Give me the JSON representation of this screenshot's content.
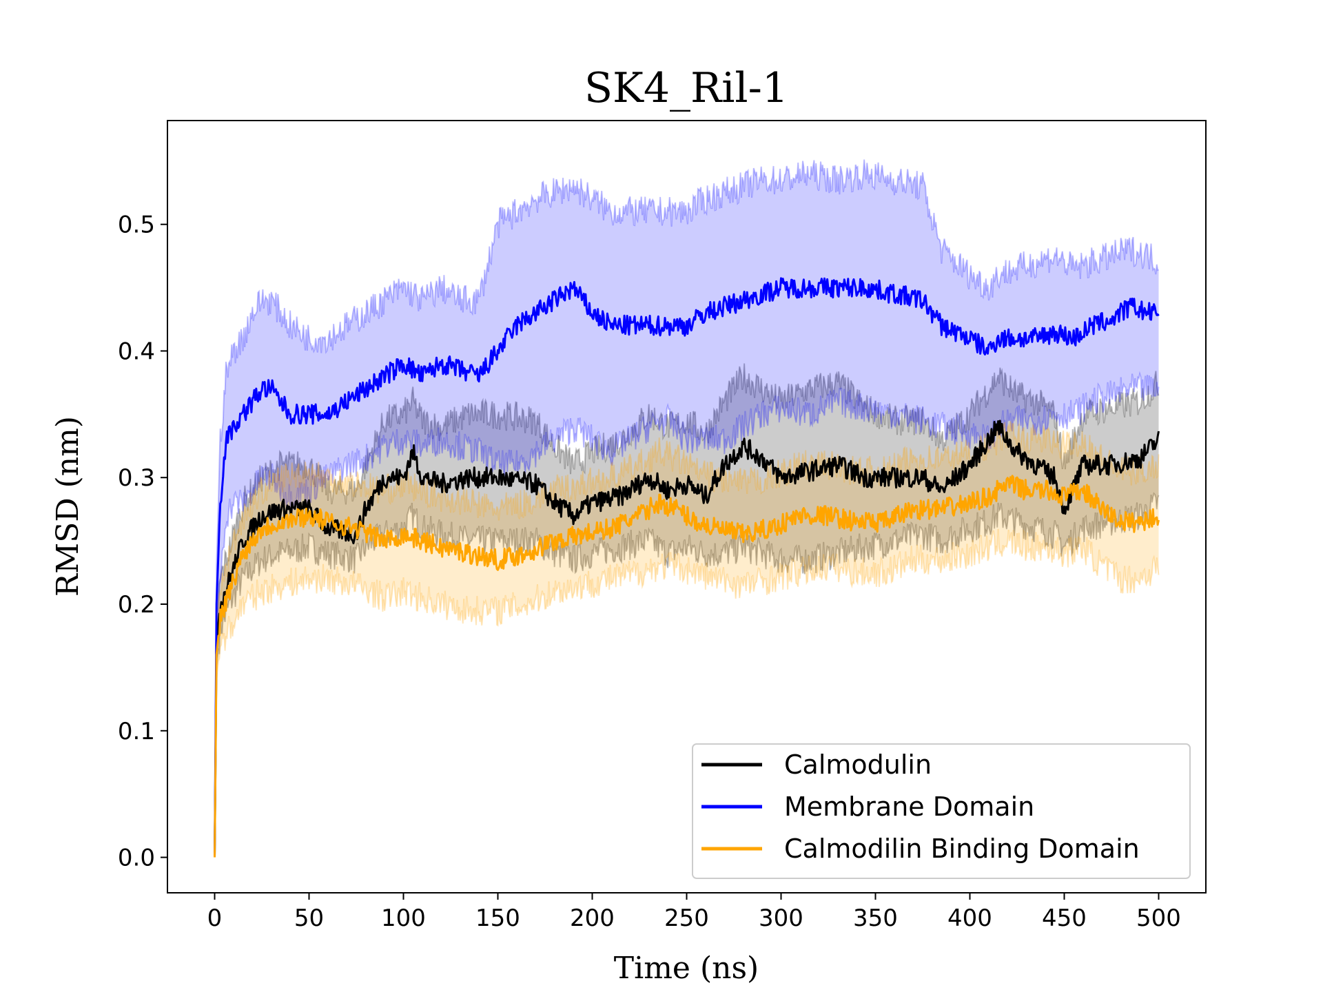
{
  "chart_data": {
    "type": "line",
    "title": "SK4_Ril-1",
    "xlabel": "Time (ns)",
    "ylabel": "RMSD (nm)",
    "xlim": [
      -25,
      525
    ],
    "ylim": [
      -0.028,
      0.582
    ],
    "xticks": [
      0,
      50,
      100,
      150,
      200,
      250,
      300,
      350,
      400,
      450,
      500
    ],
    "xtick_labels": [
      "0",
      "50",
      "100",
      "150",
      "200",
      "250",
      "300",
      "350",
      "400",
      "450",
      "500"
    ],
    "yticks": [
      0.0,
      0.1,
      0.2,
      0.3,
      0.4,
      0.5
    ],
    "ytick_labels": [
      "0.0",
      "0.1",
      "0.2",
      "0.3",
      "0.4",
      "0.5"
    ],
    "grid": false,
    "legend_position": "lower-right",
    "series": [
      {
        "name": "Calmodulin",
        "color": "#000000",
        "x": [
          0,
          1,
          3,
          8,
          15,
          25,
          35,
          50,
          60,
          75,
          80,
          90,
          100,
          105,
          110,
          120,
          135,
          150,
          170,
          180,
          190,
          200,
          215,
          230,
          240,
          250,
          260,
          270,
          280,
          290,
          300,
          315,
          330,
          345,
          360,
          375,
          385,
          400,
          410,
          415,
          425,
          435,
          445,
          450,
          460,
          475,
          490,
          500
        ],
        "y": [
          0.0,
          0.17,
          0.2,
          0.22,
          0.25,
          0.27,
          0.275,
          0.275,
          0.26,
          0.255,
          0.275,
          0.3,
          0.3,
          0.32,
          0.3,
          0.295,
          0.3,
          0.3,
          0.295,
          0.28,
          0.27,
          0.28,
          0.285,
          0.3,
          0.29,
          0.295,
          0.285,
          0.31,
          0.325,
          0.315,
          0.3,
          0.305,
          0.31,
          0.3,
          0.3,
          0.3,
          0.29,
          0.31,
          0.33,
          0.34,
          0.32,
          0.31,
          0.3,
          0.275,
          0.31,
          0.31,
          0.315,
          0.33
        ],
        "lower": [
          0.0,
          0.15,
          0.18,
          0.2,
          0.22,
          0.235,
          0.24,
          0.245,
          0.24,
          0.235,
          0.245,
          0.255,
          0.26,
          0.27,
          0.26,
          0.255,
          0.25,
          0.25,
          0.25,
          0.24,
          0.235,
          0.24,
          0.245,
          0.25,
          0.24,
          0.245,
          0.24,
          0.24,
          0.245,
          0.24,
          0.235,
          0.235,
          0.24,
          0.245,
          0.25,
          0.255,
          0.25,
          0.26,
          0.265,
          0.27,
          0.265,
          0.26,
          0.255,
          0.245,
          0.26,
          0.265,
          0.27,
          0.28
        ],
        "upper": [
          0.0,
          0.19,
          0.22,
          0.245,
          0.28,
          0.3,
          0.31,
          0.31,
          0.29,
          0.29,
          0.31,
          0.345,
          0.35,
          0.36,
          0.345,
          0.34,
          0.35,
          0.35,
          0.345,
          0.325,
          0.31,
          0.32,
          0.33,
          0.35,
          0.34,
          0.345,
          0.335,
          0.36,
          0.38,
          0.37,
          0.36,
          0.37,
          0.375,
          0.355,
          0.345,
          0.345,
          0.33,
          0.35,
          0.37,
          0.38,
          0.365,
          0.36,
          0.35,
          0.31,
          0.35,
          0.355,
          0.36,
          0.375
        ]
      },
      {
        "name": "Membrane Domain",
        "color": "#0000ff",
        "x": [
          0,
          1,
          3,
          6,
          10,
          15,
          20,
          25,
          30,
          40,
          50,
          60,
          70,
          80,
          90,
          100,
          110,
          120,
          130,
          140,
          150,
          160,
          170,
          180,
          190,
          200,
          210,
          220,
          230,
          240,
          250,
          260,
          270,
          280,
          290,
          300,
          315,
          330,
          345,
          360,
          375,
          385,
          400,
          410,
          415,
          425,
          435,
          445,
          455,
          465,
          475,
          485,
          495,
          500
        ],
        "y": [
          0.0,
          0.2,
          0.28,
          0.33,
          0.34,
          0.35,
          0.36,
          0.37,
          0.37,
          0.35,
          0.35,
          0.35,
          0.36,
          0.37,
          0.38,
          0.39,
          0.38,
          0.39,
          0.385,
          0.38,
          0.4,
          0.42,
          0.43,
          0.44,
          0.45,
          0.43,
          0.42,
          0.42,
          0.42,
          0.42,
          0.42,
          0.43,
          0.435,
          0.44,
          0.445,
          0.45,
          0.45,
          0.45,
          0.45,
          0.445,
          0.44,
          0.42,
          0.41,
          0.4,
          0.41,
          0.41,
          0.41,
          0.415,
          0.41,
          0.42,
          0.425,
          0.435,
          0.43,
          0.43
        ],
        "lower": [
          0.0,
          0.17,
          0.22,
          0.27,
          0.28,
          0.28,
          0.29,
          0.3,
          0.3,
          0.285,
          0.29,
          0.3,
          0.31,
          0.315,
          0.325,
          0.33,
          0.325,
          0.33,
          0.325,
          0.32,
          0.31,
          0.31,
          0.32,
          0.33,
          0.34,
          0.33,
          0.32,
          0.33,
          0.34,
          0.345,
          0.33,
          0.33,
          0.33,
          0.34,
          0.35,
          0.355,
          0.35,
          0.36,
          0.355,
          0.35,
          0.345,
          0.34,
          0.335,
          0.33,
          0.34,
          0.345,
          0.345,
          0.35,
          0.35,
          0.36,
          0.365,
          0.37,
          0.37,
          0.37
        ],
        "upper": [
          0.0,
          0.23,
          0.33,
          0.38,
          0.4,
          0.41,
          0.43,
          0.44,
          0.44,
          0.42,
          0.41,
          0.41,
          0.42,
          0.43,
          0.44,
          0.45,
          0.44,
          0.45,
          0.44,
          0.44,
          0.5,
          0.51,
          0.52,
          0.525,
          0.53,
          0.52,
          0.51,
          0.51,
          0.51,
          0.51,
          0.51,
          0.52,
          0.525,
          0.53,
          0.535,
          0.535,
          0.54,
          0.535,
          0.54,
          0.535,
          0.53,
          0.48,
          0.46,
          0.45,
          0.46,
          0.465,
          0.47,
          0.475,
          0.465,
          0.47,
          0.475,
          0.48,
          0.475,
          0.47
        ]
      },
      {
        "name": "Calmodilin Binding Domain",
        "color": "#ffa500",
        "x": [
          0,
          1,
          3,
          8,
          15,
          25,
          35,
          50,
          60,
          75,
          90,
          100,
          110,
          120,
          135,
          150,
          165,
          180,
          195,
          210,
          225,
          235,
          245,
          255,
          265,
          280,
          295,
          310,
          325,
          340,
          355,
          370,
          385,
          400,
          410,
          420,
          430,
          440,
          450,
          460,
          470,
          480,
          490,
          500
        ],
        "y": [
          0.0,
          0.16,
          0.19,
          0.21,
          0.24,
          0.26,
          0.265,
          0.27,
          0.265,
          0.26,
          0.25,
          0.255,
          0.25,
          0.245,
          0.24,
          0.235,
          0.24,
          0.25,
          0.255,
          0.26,
          0.27,
          0.28,
          0.275,
          0.265,
          0.26,
          0.255,
          0.26,
          0.27,
          0.27,
          0.265,
          0.265,
          0.275,
          0.275,
          0.28,
          0.285,
          0.295,
          0.29,
          0.29,
          0.285,
          0.29,
          0.275,
          0.265,
          0.265,
          0.27
        ],
        "lower": [
          0.0,
          0.14,
          0.17,
          0.18,
          0.2,
          0.21,
          0.215,
          0.22,
          0.22,
          0.215,
          0.205,
          0.21,
          0.205,
          0.2,
          0.195,
          0.195,
          0.2,
          0.21,
          0.215,
          0.22,
          0.225,
          0.23,
          0.23,
          0.225,
          0.22,
          0.215,
          0.22,
          0.225,
          0.23,
          0.225,
          0.225,
          0.235,
          0.235,
          0.24,
          0.245,
          0.25,
          0.245,
          0.245,
          0.24,
          0.245,
          0.23,
          0.22,
          0.22,
          0.23
        ],
        "upper": [
          0.0,
          0.18,
          0.21,
          0.24,
          0.27,
          0.29,
          0.3,
          0.305,
          0.3,
          0.295,
          0.29,
          0.295,
          0.29,
          0.285,
          0.28,
          0.275,
          0.28,
          0.29,
          0.295,
          0.3,
          0.31,
          0.32,
          0.315,
          0.305,
          0.3,
          0.295,
          0.3,
          0.31,
          0.31,
          0.305,
          0.305,
          0.315,
          0.315,
          0.32,
          0.325,
          0.335,
          0.33,
          0.33,
          0.325,
          0.33,
          0.315,
          0.305,
          0.305,
          0.31
        ]
      }
    ]
  }
}
